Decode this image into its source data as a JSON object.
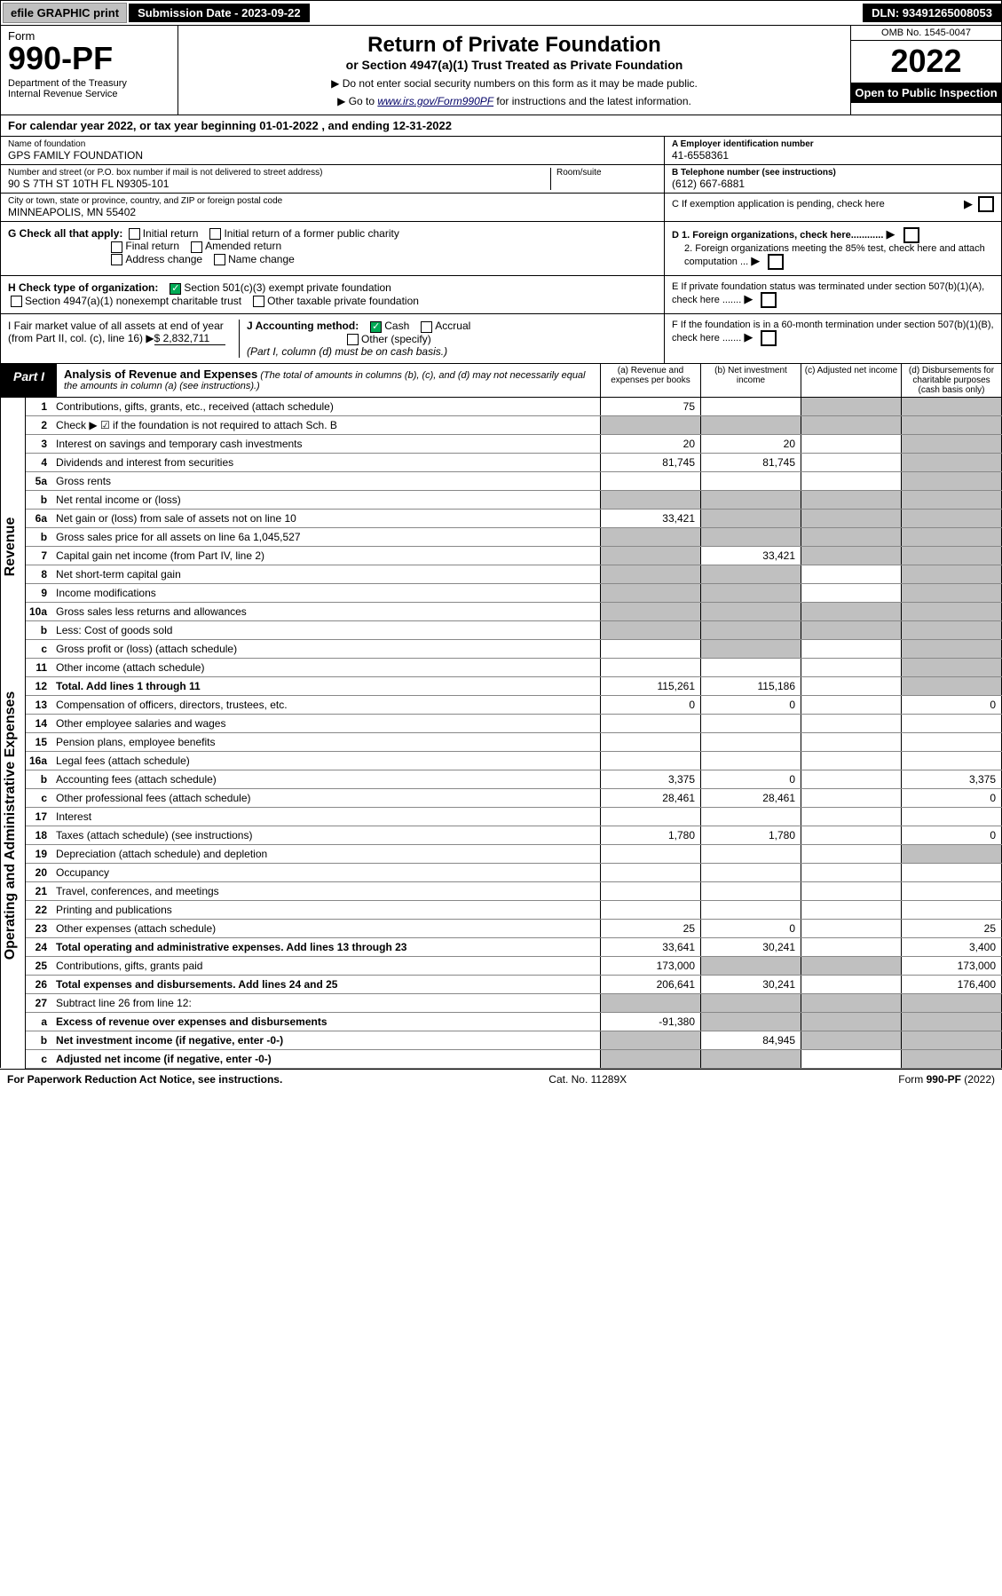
{
  "topbar": {
    "efile": "efile GRAPHIC print",
    "sub_date_label": "Submission Date - 2023-09-22",
    "dln": "DLN: 93491265008053"
  },
  "header": {
    "form_word": "Form",
    "form_num": "990-PF",
    "dept": "Department of the Treasury\nInternal Revenue Service",
    "title": "Return of Private Foundation",
    "subtitle": "or Section 4947(a)(1) Trust Treated as Private Foundation",
    "note1": "▶ Do not enter social security numbers on this form as it may be made public.",
    "note2_pre": "▶ Go to ",
    "note2_link": "www.irs.gov/Form990PF",
    "note2_post": " for instructions and the latest information.",
    "omb": "OMB No. 1545-0047",
    "year": "2022",
    "open": "Open to Public Inspection"
  },
  "cal": "For calendar year 2022, or tax year beginning 01-01-2022                               , and ending 12-31-2022",
  "info": {
    "name_lbl": "Name of foundation",
    "name": "GPS FAMILY FOUNDATION",
    "addr_lbl": "Number and street (or P.O. box number if mail is not delivered to street address)",
    "addr": "90 S 7TH ST 10TH FL N9305-101",
    "room_lbl": "Room/suite",
    "city_lbl": "City or town, state or province, country, and ZIP or foreign postal code",
    "city": "MINNEAPOLIS, MN  55402",
    "a_lbl": "A Employer identification number",
    "a": "41-6558361",
    "b_lbl": "B Telephone number (see instructions)",
    "b": "(612) 667-6881",
    "c": "C If exemption application is pending, check here"
  },
  "g": {
    "label": "G Check all that apply:",
    "opts": [
      "Initial return",
      "Initial return of a former public charity",
      "Final return",
      "Amended return",
      "Address change",
      "Name change"
    ]
  },
  "d": {
    "d1": "D 1. Foreign organizations, check here............",
    "d2": "2. Foreign organizations meeting the 85% test, check here and attach computation ..."
  },
  "h": {
    "label": "H Check type of organization:",
    "o1": "Section 501(c)(3) exempt private foundation",
    "o2": "Section 4947(a)(1) nonexempt charitable trust",
    "o3": "Other taxable private foundation"
  },
  "e": "E  If private foundation status was terminated under section 507(b)(1)(A), check here .......",
  "i": {
    "label": "I Fair market value of all assets at end of year (from Part II, col. (c), line 16)",
    "val": "$  2,832,711"
  },
  "j": {
    "label": "J Accounting method:",
    "cash": "Cash",
    "accrual": "Accrual",
    "other": "Other (specify)",
    "note": "(Part I, column (d) must be on cash basis.)"
  },
  "f": "F  If the foundation is in a 60-month termination under section 507(b)(1)(B), check here .......",
  "part1": {
    "tag": "Part I",
    "title": "Analysis of Revenue and Expenses",
    "note": "(The total of amounts in columns (b), (c), and (d) may not necessarily equal the amounts in column (a) (see instructions).)",
    "col_a": "(a)   Revenue and expenses per books",
    "col_b": "(b)   Net investment income",
    "col_c": "(c)   Adjusted net income",
    "col_d": "(d)   Disbursements for charitable purposes (cash basis only)"
  },
  "sides": {
    "rev": "Revenue",
    "exp": "Operating and Administrative Expenses"
  },
  "rows": [
    {
      "ln": "1",
      "desc": "Contributions, gifts, grants, etc., received (attach schedule)",
      "a": "75",
      "b": "",
      "c": "s",
      "d": "s"
    },
    {
      "ln": "2",
      "desc": "Check ▶ ☑ if the foundation is not required to attach Sch. B",
      "a": "s",
      "b": "s",
      "c": "s",
      "d": "s",
      "bold_not": true
    },
    {
      "ln": "3",
      "desc": "Interest on savings and temporary cash investments",
      "a": "20",
      "b": "20",
      "c": "",
      "d": "s"
    },
    {
      "ln": "4",
      "desc": "Dividends and interest from securities",
      "a": "81,745",
      "b": "81,745",
      "c": "",
      "d": "s"
    },
    {
      "ln": "5a",
      "desc": "Gross rents",
      "a": "",
      "b": "",
      "c": "",
      "d": "s"
    },
    {
      "ln": "b",
      "desc": "Net rental income or (loss)",
      "a": "s",
      "b": "s",
      "c": "s",
      "d": "s"
    },
    {
      "ln": "6a",
      "desc": "Net gain or (loss) from sale of assets not on line 10",
      "a": "33,421",
      "b": "s",
      "c": "s",
      "d": "s"
    },
    {
      "ln": "b",
      "desc": "Gross sales price for all assets on line 6a        1,045,527",
      "a": "s",
      "b": "s",
      "c": "s",
      "d": "s"
    },
    {
      "ln": "7",
      "desc": "Capital gain net income (from Part IV, line 2)",
      "a": "s",
      "b": "33,421",
      "c": "s",
      "d": "s"
    },
    {
      "ln": "8",
      "desc": "Net short-term capital gain",
      "a": "s",
      "b": "s",
      "c": "",
      "d": "s"
    },
    {
      "ln": "9",
      "desc": "Income modifications",
      "a": "s",
      "b": "s",
      "c": "",
      "d": "s"
    },
    {
      "ln": "10a",
      "desc": "Gross sales less returns and allowances",
      "a": "s",
      "b": "s",
      "c": "s",
      "d": "s"
    },
    {
      "ln": "b",
      "desc": "Less: Cost of goods sold",
      "a": "s",
      "b": "s",
      "c": "s",
      "d": "s"
    },
    {
      "ln": "c",
      "desc": "Gross profit or (loss) (attach schedule)",
      "a": "",
      "b": "s",
      "c": "",
      "d": "s"
    },
    {
      "ln": "11",
      "desc": "Other income (attach schedule)",
      "a": "",
      "b": "",
      "c": "",
      "d": "s"
    },
    {
      "ln": "12",
      "desc": "Total. Add lines 1 through 11",
      "a": "115,261",
      "b": "115,186",
      "c": "",
      "d": "s",
      "bold": true
    },
    {
      "ln": "13",
      "desc": "Compensation of officers, directors, trustees, etc.",
      "a": "0",
      "b": "0",
      "c": "",
      "d": "0"
    },
    {
      "ln": "14",
      "desc": "Other employee salaries and wages",
      "a": "",
      "b": "",
      "c": "",
      "d": ""
    },
    {
      "ln": "15",
      "desc": "Pension plans, employee benefits",
      "a": "",
      "b": "",
      "c": "",
      "d": ""
    },
    {
      "ln": "16a",
      "desc": "Legal fees (attach schedule)",
      "a": "",
      "b": "",
      "c": "",
      "d": ""
    },
    {
      "ln": "b",
      "desc": "Accounting fees (attach schedule)",
      "a": "3,375",
      "b": "0",
      "c": "",
      "d": "3,375"
    },
    {
      "ln": "c",
      "desc": "Other professional fees (attach schedule)",
      "a": "28,461",
      "b": "28,461",
      "c": "",
      "d": "0"
    },
    {
      "ln": "17",
      "desc": "Interest",
      "a": "",
      "b": "",
      "c": "",
      "d": ""
    },
    {
      "ln": "18",
      "desc": "Taxes (attach schedule) (see instructions)",
      "a": "1,780",
      "b": "1,780",
      "c": "",
      "d": "0"
    },
    {
      "ln": "19",
      "desc": "Depreciation (attach schedule) and depletion",
      "a": "",
      "b": "",
      "c": "",
      "d": "s"
    },
    {
      "ln": "20",
      "desc": "Occupancy",
      "a": "",
      "b": "",
      "c": "",
      "d": ""
    },
    {
      "ln": "21",
      "desc": "Travel, conferences, and meetings",
      "a": "",
      "b": "",
      "c": "",
      "d": ""
    },
    {
      "ln": "22",
      "desc": "Printing and publications",
      "a": "",
      "b": "",
      "c": "",
      "d": ""
    },
    {
      "ln": "23",
      "desc": "Other expenses (attach schedule)",
      "a": "25",
      "b": "0",
      "c": "",
      "d": "25"
    },
    {
      "ln": "24",
      "desc": "Total operating and administrative expenses. Add lines 13 through 23",
      "a": "33,641",
      "b": "30,241",
      "c": "",
      "d": "3,400",
      "bold_first": true
    },
    {
      "ln": "25",
      "desc": "Contributions, gifts, grants paid",
      "a": "173,000",
      "b": "s",
      "c": "s",
      "d": "173,000"
    },
    {
      "ln": "26",
      "desc": "Total expenses and disbursements. Add lines 24 and 25",
      "a": "206,641",
      "b": "30,241",
      "c": "",
      "d": "176,400",
      "bold": true
    },
    {
      "ln": "27",
      "desc": "Subtract line 26 from line 12:",
      "a": "s",
      "b": "s",
      "c": "s",
      "d": "s"
    },
    {
      "ln": "a",
      "desc": "Excess of revenue over expenses and disbursements",
      "a": "-91,380",
      "b": "s",
      "c": "s",
      "d": "s",
      "bold": true
    },
    {
      "ln": "b",
      "desc": "Net investment income (if negative, enter -0-)",
      "a": "s",
      "b": "84,945",
      "c": "s",
      "d": "s",
      "bold": true
    },
    {
      "ln": "c",
      "desc": "Adjusted net income (if negative, enter -0-)",
      "a": "s",
      "b": "s",
      "c": "",
      "d": "s",
      "bold": true
    }
  ],
  "footer": {
    "left": "For Paperwork Reduction Act Notice, see instructions.",
    "mid": "Cat. No. 11289X",
    "right": "Form 990-PF (2022)"
  }
}
